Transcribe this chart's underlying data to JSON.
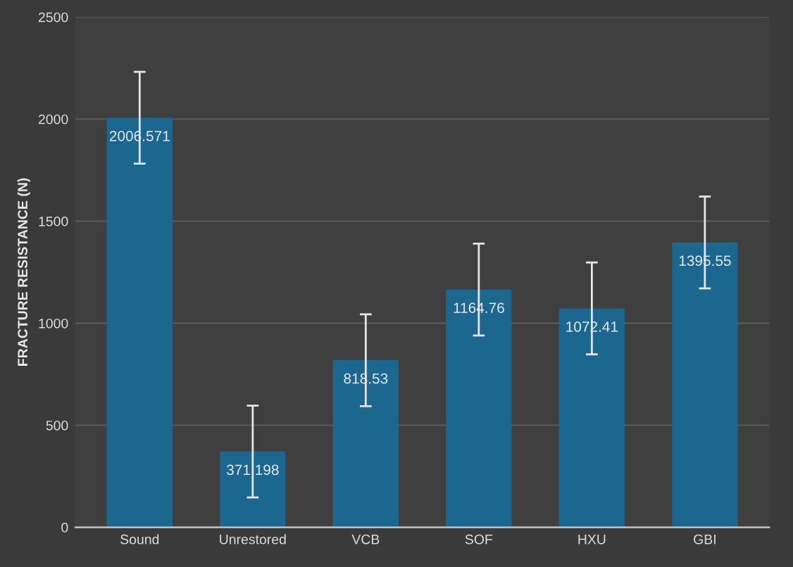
{
  "chart_data": {
    "type": "bar",
    "ylabel": "FRACTURE RESISTANCE (N)",
    "categories": [
      "Sound",
      "Unrestored",
      "VCB",
      "SOF",
      "HXU",
      "GBI"
    ],
    "values": [
      2006.571,
      371.198,
      818.53,
      1164.76,
      1072.41,
      1395.55
    ],
    "errors": [
      225,
      225,
      225,
      225,
      225,
      225
    ],
    "color": "#1c6790",
    "ylim": [
      0,
      2500
    ],
    "yticks": [
      0,
      500,
      1000,
      1500,
      2000,
      2500
    ],
    "grid": "y",
    "data_labels": true
  }
}
